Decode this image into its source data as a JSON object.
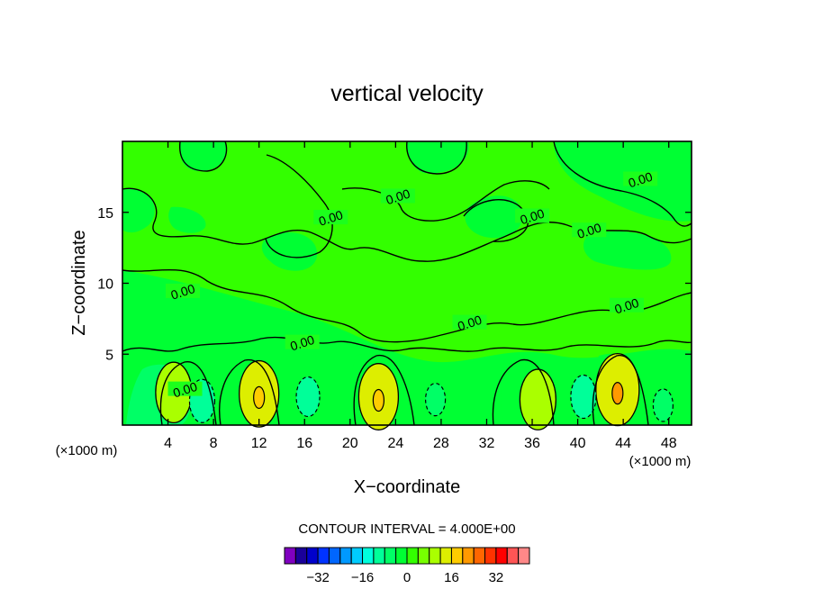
{
  "chart_data": {
    "type": "heatmap",
    "title": "vertical velocity",
    "xlabel": "X−coordinate",
    "ylabel": "Z−coordinate",
    "x_unit_left": "(×1000 m)",
    "x_unit_right": "(×1000 m)",
    "xlim": [
      0,
      50
    ],
    "ylim": [
      0,
      20
    ],
    "x_ticks": [
      4,
      8,
      12,
      16,
      20,
      24,
      28,
      32,
      36,
      40,
      44,
      48
    ],
    "y_ticks": [
      5,
      10,
      15
    ],
    "contour_interval_text": "CONTOUR INTERVAL = 4.000E+00",
    "contour_labels": [
      {
        "text": "0.00",
        "x": 24.2,
        "z": 16.1
      },
      {
        "text": "0.00",
        "x": 18.3,
        "z": 14.6
      },
      {
        "text": "0.00",
        "x": 36.0,
        "z": 14.7
      },
      {
        "text": "0.00",
        "x": 41.0,
        "z": 13.7
      },
      {
        "text": "0.00",
        "x": 45.5,
        "z": 17.3
      },
      {
        "text": "0.00",
        "x": 5.3,
        "z": 9.4
      },
      {
        "text": "0.00",
        "x": 44.3,
        "z": 8.4
      },
      {
        "text": "0.00",
        "x": 30.5,
        "z": 7.2
      },
      {
        "text": "0.00",
        "x": 15.8,
        "z": 5.8
      },
      {
        "text": "0.00",
        "x": 5.5,
        "z": 2.5
      }
    ],
    "positive_cells": [
      {
        "x": 4.5,
        "z": 2.3,
        "value": 6
      },
      {
        "x": 12.0,
        "z": 2.2,
        "value": 8
      },
      {
        "x": 22.5,
        "z": 2.0,
        "value": 8
      },
      {
        "x": 36.5,
        "z": 1.8,
        "value": 6
      },
      {
        "x": 43.5,
        "z": 2.5,
        "value": 10
      }
    ],
    "negative_cells": [
      {
        "x": 7.0,
        "z": 1.7,
        "value": -6
      },
      {
        "x": 16.3,
        "z": 2.0,
        "value": -5
      },
      {
        "x": 40.5,
        "z": 2.0,
        "value": -6
      },
      {
        "x": 27.5,
        "z": 1.8,
        "value": -3
      },
      {
        "x": 47.5,
        "z": 1.4,
        "value": -3
      }
    ],
    "colorbar": {
      "colors": [
        "#8000c0",
        "#1a0099",
        "#0000cc",
        "#0033ff",
        "#0066ff",
        "#0099ff",
        "#00ccff",
        "#00ffdd",
        "#00ff99",
        "#00ff66",
        "#00ff33",
        "#33ff00",
        "#77ff00",
        "#aaff00",
        "#ddee00",
        "#ffcc00",
        "#ff9900",
        "#ff6600",
        "#ff3300",
        "#ff0000",
        "#ff5555",
        "#ff8888"
      ],
      "tick_labels": [
        "−32",
        "−16",
        "0",
        "16",
        "32"
      ],
      "tick_values": [
        -32,
        -16,
        0,
        16,
        32
      ],
      "vmin": -44,
      "vmax": 44
    }
  }
}
